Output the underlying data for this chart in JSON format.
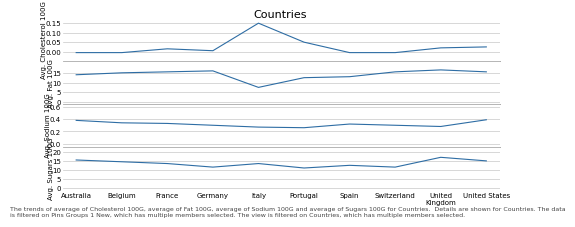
{
  "title": "Countries",
  "countries": [
    "Australia",
    "Belgium",
    "France",
    "Germany",
    "Italy",
    "Portugal",
    "Spain",
    "Switzerland",
    "United\nKingdom",
    "United States"
  ],
  "cholesterol": [
    -0.005,
    -0.005,
    0.015,
    0.005,
    0.15,
    0.05,
    -0.005,
    -0.005,
    0.02,
    0.025
  ],
  "fat": [
    14.0,
    15.0,
    15.5,
    16.0,
    7.5,
    12.5,
    13.0,
    15.5,
    16.5,
    15.5
  ],
  "sodium": [
    0.38,
    0.34,
    0.33,
    0.3,
    0.27,
    0.26,
    0.32,
    0.3,
    0.28,
    0.39
  ],
  "sugars": [
    15.5,
    14.5,
    13.5,
    11.5,
    13.5,
    11.0,
    12.5,
    11.5,
    17.0,
    15.0
  ],
  "ylim_cholesterol": [
    -0.05,
    0.175
  ],
  "ylim_fat": [
    -1,
    21
  ],
  "ylim_sodium": [
    -0.05,
    0.65
  ],
  "ylim_sugars": [
    -1,
    23
  ],
  "yticks_cholesterol": [
    0.0,
    0.05,
    0.1,
    0.15
  ],
  "yticks_fat": [
    0,
    5,
    10,
    15
  ],
  "yticks_sodium": [
    0.0,
    0.2,
    0.4,
    0.6
  ],
  "yticks_sugars": [
    0,
    5,
    10,
    15,
    20
  ],
  "ylabel_cholesterol": "Avg. Cholesterol 100G",
  "ylabel_fat": "Avg. Fat 100G",
  "ylabel_sodium": "Avg. Sodium 100G",
  "ylabel_sugars": "Avg. Sugars 100G",
  "line_color": "#2E6DA4",
  "grid_color": "#C8C8C8",
  "bg_color": "#FFFFFF",
  "panel_bg": "#FFFFFF",
  "separator_color": "#AAAAAA",
  "footer_text": "The trends of average of Cholesterol 100G, average of Fat 100G, average of Sodium 100G and average of Sugars 100G for Countries.  Details are shown for Countries. The data\nis filtered on Pins Groups 1 New, which has multiple members selected. The view is filtered on Countries, which has multiple members selected.",
  "title_fontsize": 8,
  "label_fontsize": 5,
  "tick_fontsize": 5,
  "footer_fontsize": 4.5
}
